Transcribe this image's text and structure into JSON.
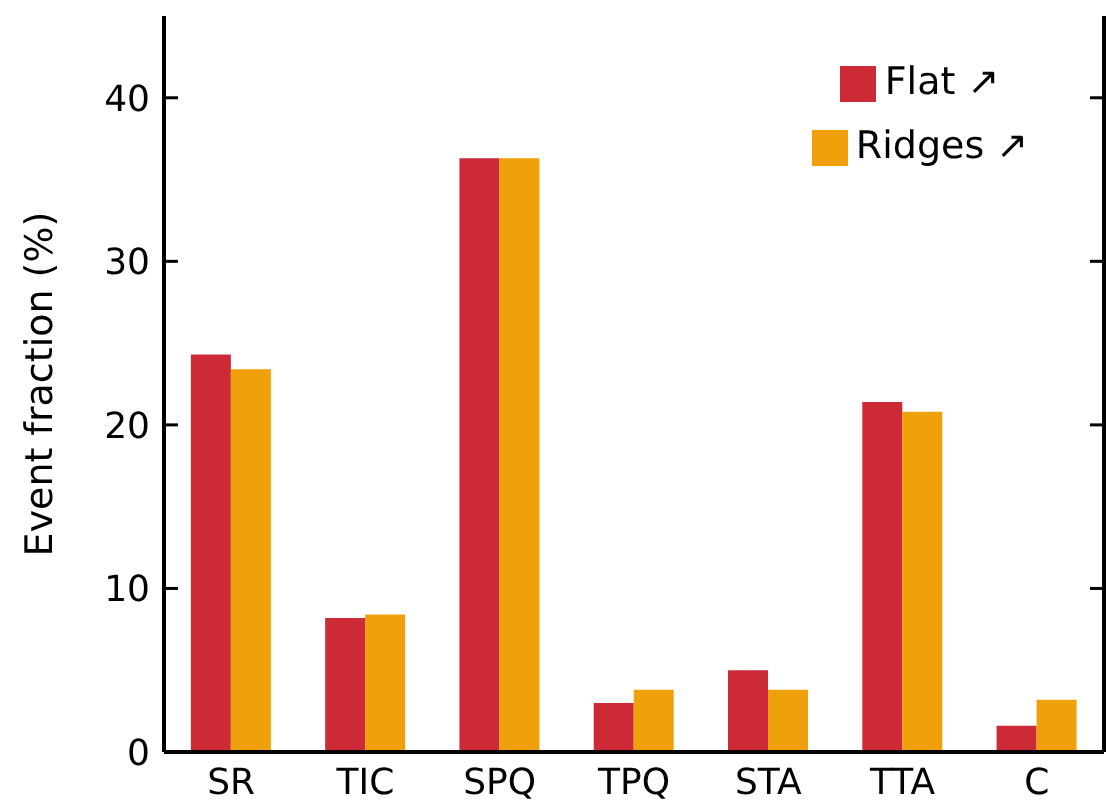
{
  "chart_data": {
    "type": "bar",
    "ylabel": "Event fraction (%)",
    "categories": [
      "SR",
      "TIC",
      "SPQ",
      "TPQ",
      "STA",
      "TTA",
      "C"
    ],
    "series": [
      {
        "name": "Flat ↗",
        "color": "#cc2a36",
        "values": [
          24.3,
          8.2,
          36.3,
          3.0,
          5.0,
          21.4,
          1.6
        ]
      },
      {
        "name": "Ridges ↗",
        "color": "#efa00b",
        "values": [
          23.4,
          8.4,
          36.3,
          3.8,
          3.8,
          20.8,
          3.2
        ]
      }
    ],
    "ylim": [
      0,
      45
    ],
    "yticks": [
      0,
      10,
      20,
      30,
      40
    ],
    "grid": false,
    "legend": "top right"
  }
}
